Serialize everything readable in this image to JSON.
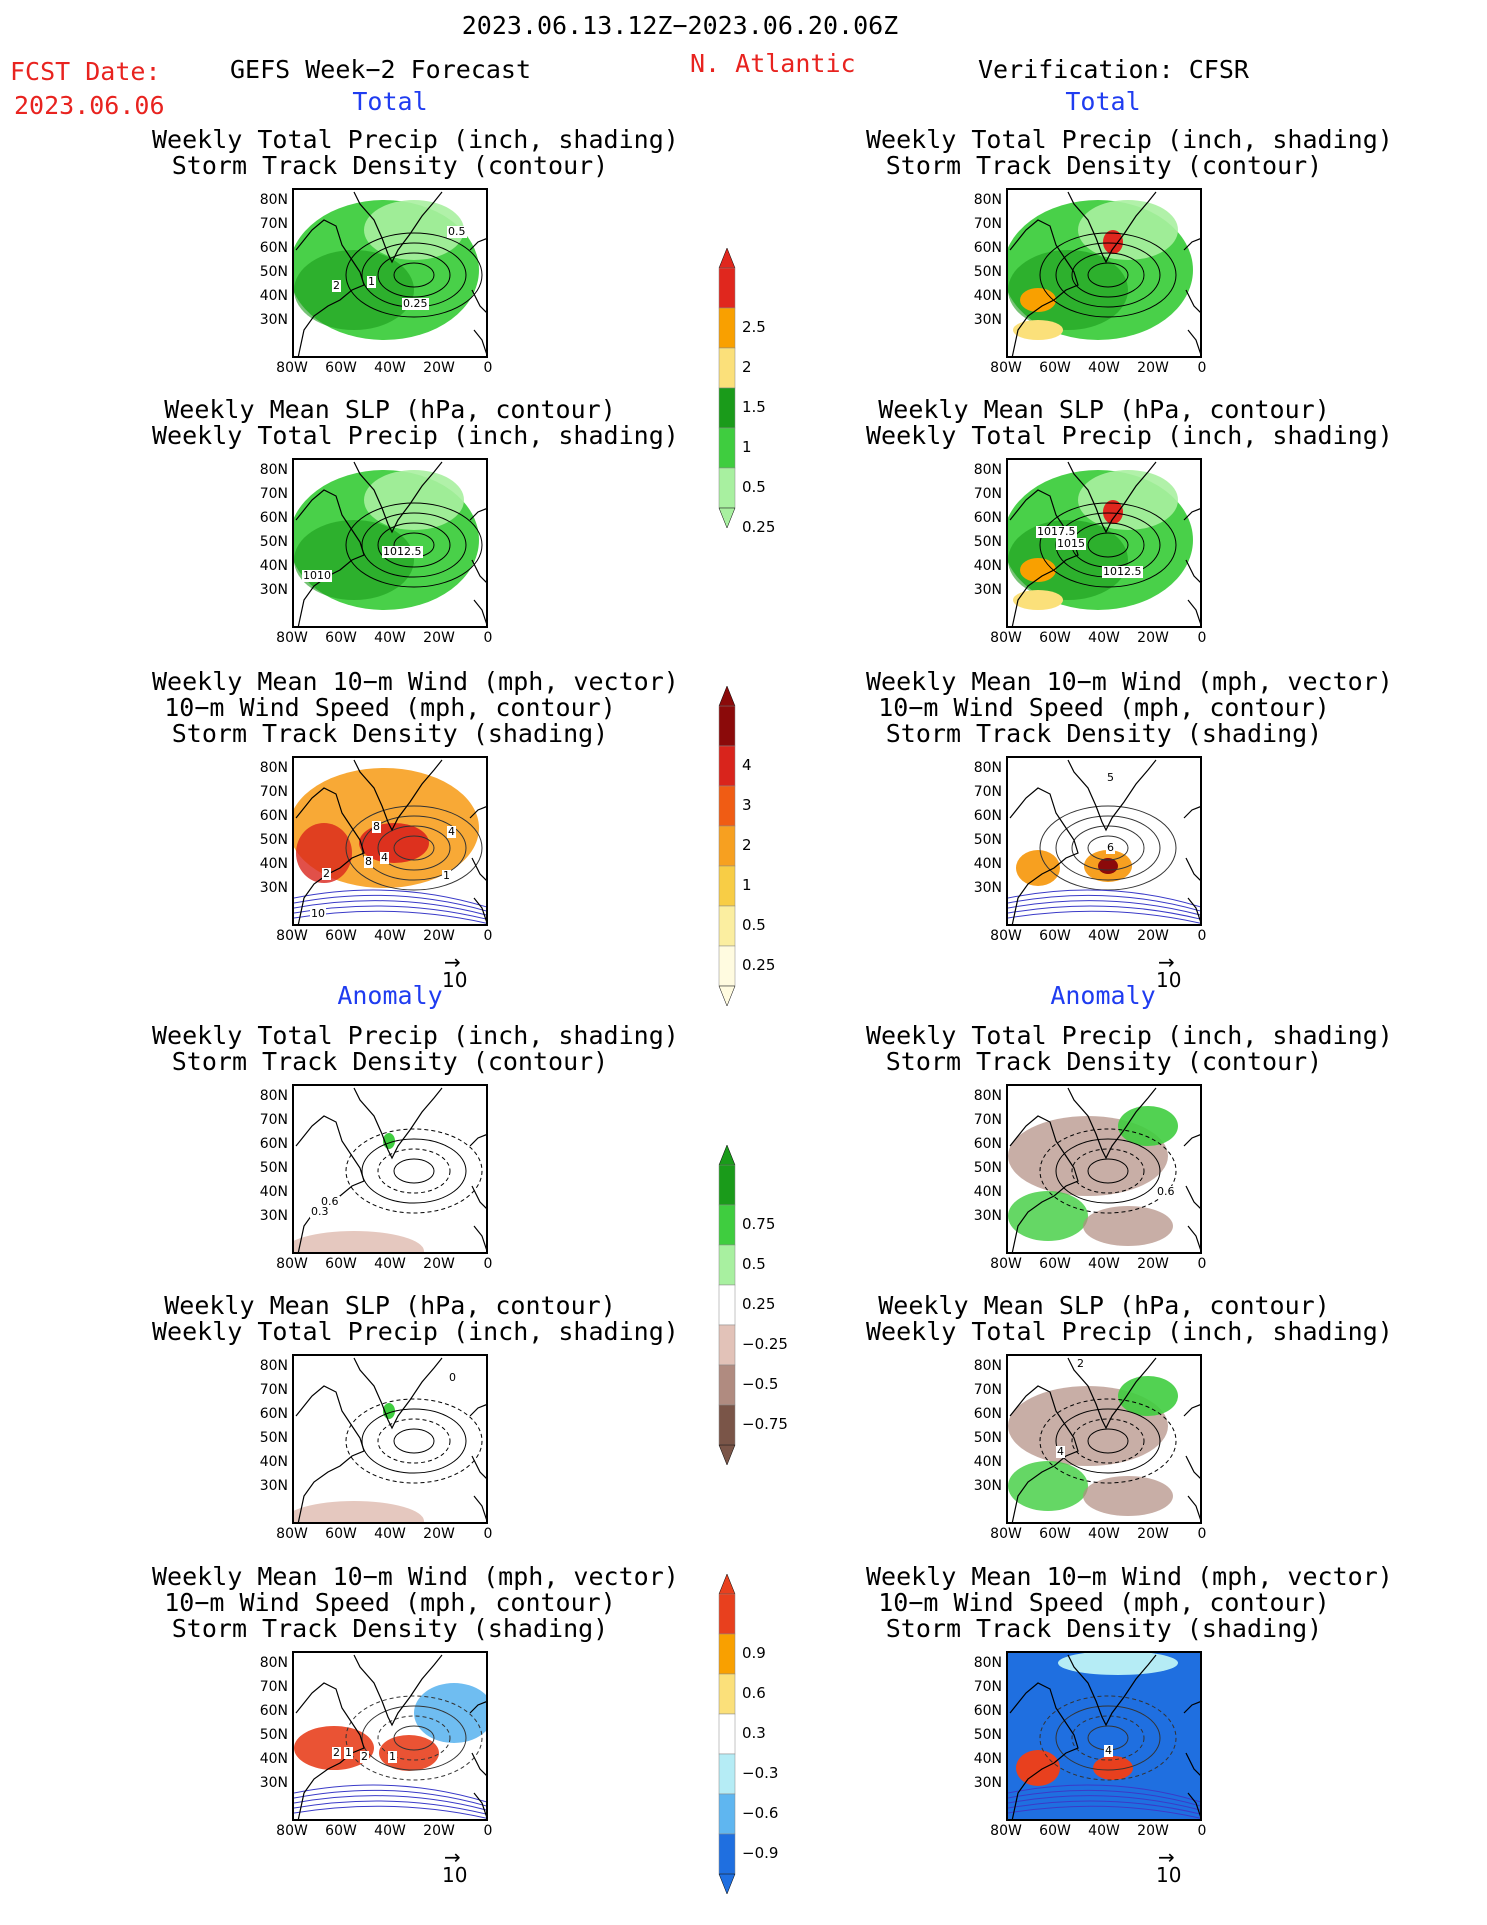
{
  "header": {
    "period": "2023.06.13.12Z−2023.06.20.06Z",
    "fcst_label": "FCST Date:",
    "fcst_date": "2023.06.06",
    "left_title": "GEFS Week−2 Forecast",
    "region": "N. Atlantic",
    "right_title": "Verification: CFSR"
  },
  "sections": {
    "total": "Total",
    "anomaly": "Anomaly"
  },
  "panel_titles": {
    "precip_storm": [
      "Weekly Total Precip (inch, shading)",
      "Storm Track Density (contour)"
    ],
    "slp_precip": [
      "Weekly Mean SLP (hPa, contour)",
      "Weekly Total Precip (inch, shading)"
    ],
    "wind_storm": [
      "Weekly Mean 10−m Wind (mph, vector)",
      "10−m Wind Speed (mph, contour)",
      "Storm Track Density (shading)"
    ]
  },
  "axes": {
    "lat_ticks": [
      "80N",
      "70N",
      "60N",
      "50N",
      "40N",
      "30N"
    ],
    "lon_ticks": [
      "80W",
      "60W",
      "40W",
      "20W",
      "0"
    ]
  },
  "vector_scale_label": "10",
  "contour_labels": {
    "total_left_precip": [
      "0.5",
      "2",
      "1",
      "0.25"
    ],
    "total_left_slp": [
      "1012.5",
      "1010"
    ],
    "total_right_slp": [
      "1017.5",
      "1015",
      "1012.5"
    ],
    "total_left_wind": [
      "8",
      "4",
      "8",
      "4",
      "2",
      "1",
      "10"
    ],
    "total_right_wind": [
      "5",
      "6"
    ],
    "anom_left_precip": [
      "0.6",
      "0.3"
    ],
    "anom_right_precip": [
      "0.6"
    ],
    "anom_left_slp": [
      "0"
    ],
    "anom_right_slp": [
      "2",
      "4"
    ],
    "anom_left_wind": [
      "2",
      "1",
      "2",
      "1"
    ],
    "anom_right_wind": [
      "4"
    ]
  },
  "colorbars": {
    "precip_total": {
      "labels": [
        "2.5",
        "2",
        "1.5",
        "1",
        "0.5",
        "0.25"
      ],
      "colors": [
        "#e0271e",
        "#f9a000",
        "#fbe07a",
        "#1a9b1a",
        "#3fcd3f",
        "#a8f0a0"
      ]
    },
    "storm_total": {
      "labels": [
        "4",
        "3",
        "2",
        "1",
        "0.5",
        "0.25"
      ],
      "colors": [
        "#8b0a0a",
        "#d9241c",
        "#f05c14",
        "#f7a020",
        "#f8cd45",
        "#fbeea0",
        "#fffbe0"
      ]
    },
    "precip_anom": {
      "labels": [
        "0.75",
        "0.5",
        "0.25",
        "−0.25",
        "−0.5",
        "−0.75"
      ],
      "colors": [
        "#1a9b1a",
        "#3fcd3f",
        "#a8f0a0",
        "#ffffff",
        "#e2c2b8",
        "#b08b80",
        "#7a5548"
      ]
    },
    "storm_anom": {
      "labels": [
        "0.9",
        "0.6",
        "0.3",
        "−0.3",
        "−0.6",
        "−0.9"
      ],
      "colors": [
        "#e8401e",
        "#f9a000",
        "#fbe07a",
        "#ffffff",
        "#b5ecf5",
        "#5fb6f0",
        "#1f6fe0"
      ]
    }
  }
}
